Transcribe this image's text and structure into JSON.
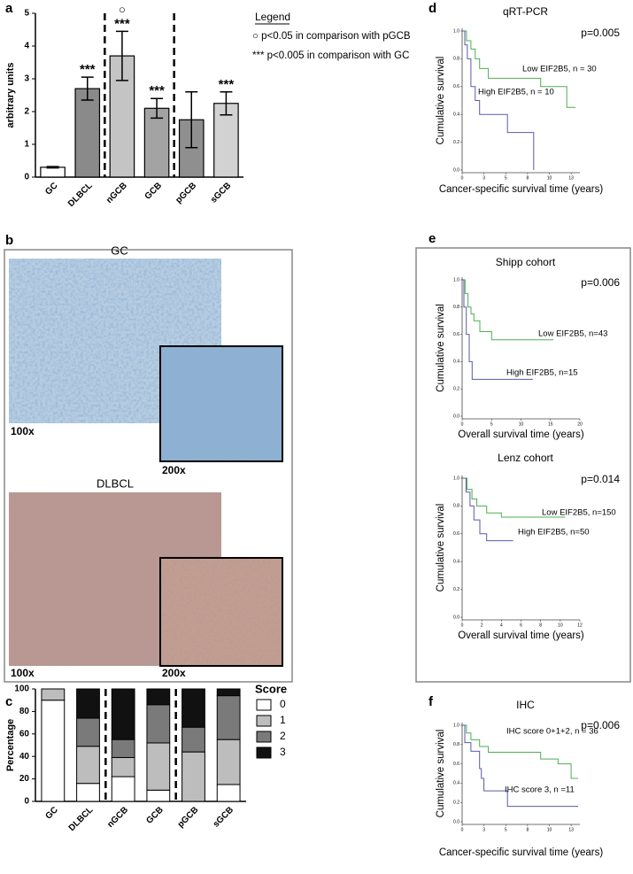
{
  "figure": {
    "panel_labels": [
      "a",
      "b",
      "c",
      "d",
      "e",
      "f"
    ],
    "micrographs": [
      {
        "title": "GC",
        "low_mag": "100x",
        "high_mag": "200x"
      },
      {
        "title": "DLBCL",
        "low_mag": "100x",
        "high_mag": "200x"
      }
    ]
  },
  "chart_data": [
    {
      "type": "bar",
      "y_label": "arbitrary units",
      "categories": [
        "GC",
        "DLBCL",
        "nGCB",
        "GCB",
        "pGCB",
        "sGCB"
      ],
      "values": [
        0.3,
        2.7,
        3.7,
        2.1,
        1.75,
        2.25
      ],
      "errors": [
        0.02,
        0.35,
        0.75,
        0.3,
        0.85,
        0.35
      ],
      "colors": [
        "#ffffff",
        "#8a8a8a",
        "#c4c4c4",
        "#a3a3a3",
        "#8f8f8f",
        "#d2d2d2"
      ],
      "significance": [
        null,
        "***",
        "***",
        "***",
        null,
        "***"
      ],
      "markers": [
        null,
        null,
        "○",
        null,
        null,
        null
      ],
      "legend_title": "Legend",
      "legend_entries": [
        "○  p<0.05 in comparison with pGCB",
        "***  p<0.005 in comparison with GC"
      ],
      "ylim": [
        0,
        5
      ],
      "yticks": [
        0,
        1,
        2,
        3,
        4,
        5
      ]
    },
    {
      "type": "stacked_bar",
      "y_label": "Percentage",
      "legend_title": "Score",
      "categories": [
        "GC",
        "DLBCL",
        "nGCB",
        "GCB",
        "pGCB",
        "sGCB"
      ],
      "series": [
        {
          "name": "0",
          "color": "#ffffff",
          "values": [
            90,
            16,
            22,
            10,
            0,
            15
          ]
        },
        {
          "name": "1",
          "color": "#bdbdbd",
          "values": [
            10,
            33,
            17,
            42,
            44,
            40
          ]
        },
        {
          "name": "2",
          "color": "#7a7a7a",
          "values": [
            0,
            25,
            16,
            34,
            22,
            39
          ]
        },
        {
          "name": "3",
          "color": "#111111",
          "values": [
            0,
            26,
            45,
            14,
            34,
            6
          ]
        }
      ],
      "ylim": [
        0,
        100
      ],
      "yticks": [
        0,
        20,
        40,
        60,
        80,
        100
      ]
    },
    {
      "type": "survival",
      "title": "qRT-PCR",
      "p_text": "p=0.005",
      "x_label": "Cancer-specific survival time (years)",
      "y_label": "Cumulative survival",
      "xlim": [
        0,
        13.5
      ],
      "ylim": [
        0,
        1
      ],
      "xticks": [
        0,
        {
          "value": 2.5,
          "label": "3"
        },
        5,
        {
          "value": 7.5,
          "label": "8"
        },
        10,
        {
          "value": 12.5,
          "label": "13"
        }
      ],
      "yticks": [
        {
          "value": 0,
          "label": "0.0"
        },
        {
          "value": 0.2,
          "label": "0.2"
        },
        {
          "value": 0.4,
          "label": "0.4"
        },
        {
          "value": 0.6,
          "label": "0.6"
        },
        {
          "value": 0.8,
          "label": "0.8"
        },
        {
          "value": 1,
          "label": "1.0"
        }
      ],
      "series": [
        {
          "name": "Low EIF2B5, n = 30",
          "color": "#4caf50",
          "x": [
            0,
            0.5,
            0.5,
            1,
            1,
            1.5,
            1.5,
            2,
            2,
            3,
            3,
            9,
            9,
            12,
            12,
            13
          ],
          "values": [
            1,
            1,
            0.93,
            0.93,
            0.87,
            0.87,
            0.8,
            0.8,
            0.73,
            0.73,
            0.66,
            0.66,
            0.6,
            0.6,
            0.45,
            0.45
          ]
        },
        {
          "name": "High EIF2B5, n = 10",
          "color": "#5a5aaa",
          "x": [
            0,
            0.3,
            0.3,
            0.6,
            0.6,
            1,
            1,
            1.5,
            1.5,
            2,
            2,
            5.2,
            5.2,
            8.2,
            8.2
          ],
          "values": [
            1,
            1,
            0.9,
            0.9,
            0.8,
            0.8,
            0.6,
            0.6,
            0.5,
            0.5,
            0.4,
            0.4,
            0.27,
            0.27,
            0
          ]
        }
      ]
    },
    {
      "type": "survival",
      "title": "Shipp cohort",
      "p_text": "p=0.006",
      "x_label": "Overall survival time (years)",
      "y_label": "Cumulative survival",
      "xlim": [
        0,
        20
      ],
      "ylim": [
        0,
        1
      ],
      "xticks": [
        0,
        5,
        10,
        15,
        20
      ],
      "yticks": [
        {
          "value": 0,
          "label": "0.0"
        },
        {
          "value": 0.2,
          "label": "0.2"
        },
        {
          "value": 0.4,
          "label": "0.4"
        },
        {
          "value": 0.6,
          "label": "0.6"
        },
        {
          "value": 0.8,
          "label": "0.8"
        },
        {
          "value": 1,
          "label": "1.0"
        }
      ],
      "series": [
        {
          "name": "Low EIF2B5, n=43",
          "color": "#4caf50",
          "x": [
            0,
            0.5,
            0.5,
            1,
            1,
            1.5,
            1.5,
            2,
            2,
            3,
            3,
            5,
            5,
            15.5
          ],
          "values": [
            1,
            1,
            0.9,
            0.9,
            0.8,
            0.8,
            0.75,
            0.75,
            0.7,
            0.7,
            0.62,
            0.62,
            0.56,
            0.56
          ]
        },
        {
          "name": "High EIF2B5, n=15",
          "color": "#5a5aaa",
          "x": [
            0,
            0.3,
            0.3,
            0.7,
            0.7,
            1.2,
            1.2,
            1.7,
            1.7,
            12
          ],
          "values": [
            1,
            1,
            0.8,
            0.8,
            0.6,
            0.6,
            0.4,
            0.4,
            0.27,
            0.27
          ]
        }
      ]
    },
    {
      "type": "survival",
      "title": "Lenz cohort",
      "p_text": "p=0.014",
      "x_label": "Overall survival time (years)",
      "y_label": "Cumulative survival",
      "xlim": [
        0,
        12
      ],
      "ylim": [
        0,
        1
      ],
      "xticks": [
        0,
        2,
        4,
        6,
        8,
        10,
        12
      ],
      "yticks": [
        {
          "value": 0,
          "label": "0.0"
        },
        {
          "value": 0.2,
          "label": "0.2"
        },
        {
          "value": 0.4,
          "label": "0.4"
        },
        {
          "value": 0.6,
          "label": "0.6"
        },
        {
          "value": 0.8,
          "label": "0.8"
        },
        {
          "value": 1,
          "label": "1.0"
        }
      ],
      "series": [
        {
          "name": "Low EIF2B5, n=150",
          "color": "#4caf50",
          "x": [
            0,
            0.5,
            0.5,
            1,
            1,
            1.5,
            1.5,
            2.5,
            2.5,
            4,
            4,
            10.5
          ],
          "values": [
            1,
            1,
            0.92,
            0.92,
            0.85,
            0.85,
            0.8,
            0.8,
            0.75,
            0.75,
            0.72,
            0.72
          ]
        },
        {
          "name": "High EIF2B5, n=50",
          "color": "#5a5aaa",
          "x": [
            0,
            0.4,
            0.4,
            0.8,
            0.8,
            1.2,
            1.2,
            1.8,
            1.8,
            2.5,
            2.5,
            5.2
          ],
          "values": [
            1,
            1,
            0.9,
            0.9,
            0.8,
            0.8,
            0.7,
            0.7,
            0.6,
            0.6,
            0.55,
            0.55
          ]
        }
      ]
    },
    {
      "type": "survival",
      "title": "IHC",
      "p_text": "p=0.006",
      "x_label": "Cancer-specific survival time (years)",
      "y_label": "Cumulative survival",
      "xlim": [
        0,
        13.5
      ],
      "ylim": [
        0,
        1
      ],
      "xticks": [
        0,
        {
          "value": 2.5,
          "label": "3"
        },
        5,
        {
          "value": 7.5,
          "label": "8"
        },
        10,
        {
          "value": 12.5,
          "label": "13"
        }
      ],
      "yticks": [
        {
          "value": 0,
          "label": "0.0"
        },
        {
          "value": 0.2,
          "label": "0.2"
        },
        {
          "value": 0.4,
          "label": "0.4"
        },
        {
          "value": 0.6,
          "label": "0.6"
        },
        {
          "value": 0.8,
          "label": "0.8"
        },
        {
          "value": 1,
          "label": "1.0"
        }
      ],
      "series": [
        {
          "name": "IHC score 0+1+2, n = 36",
          "color": "#4caf50",
          "x": [
            0,
            0.5,
            0.5,
            1,
            1,
            2,
            2,
            3,
            3,
            9,
            9,
            11,
            11,
            12.5,
            12.5,
            13.3
          ],
          "values": [
            1,
            1,
            0.92,
            0.92,
            0.85,
            0.85,
            0.78,
            0.78,
            0.72,
            0.72,
            0.65,
            0.65,
            0.6,
            0.6,
            0.45,
            0.45
          ]
        },
        {
          "name": "IHC score 3, n =11",
          "color": "#5a5aaa",
          "x": [
            0,
            0.3,
            0.3,
            1,
            1,
            2,
            2,
            2.2,
            2.2,
            2.5,
            2.5,
            5.2,
            5.2,
            13.3
          ],
          "values": [
            1,
            1,
            0.82,
            0.82,
            0.73,
            0.73,
            0.55,
            0.55,
            0.45,
            0.45,
            0.32,
            0.32,
            0.16,
            0.16
          ]
        }
      ]
    }
  ]
}
